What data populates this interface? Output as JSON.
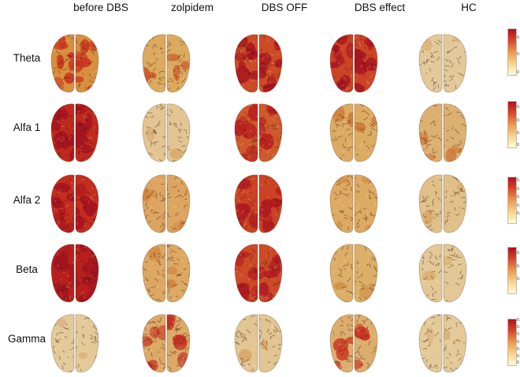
{
  "columns": [
    "before DBS",
    "zolpidem",
    "DBS OFF",
    "DBS effect",
    "HC"
  ],
  "rows": [
    {
      "label": "Theta",
      "colorbar_ticks": [
        "0.1",
        "0.05",
        "0"
      ],
      "tick_fractions": [
        0.78,
        0.42,
        0.02
      ],
      "brains": [
        {
          "base": "#d8903e",
          "hot": "#c8321e",
          "hot_fraction": 0.5
        },
        {
          "base": "#dcaa5e",
          "hot": "#cc5a2c",
          "hot_fraction": 0.22
        },
        {
          "base": "#cc4a26",
          "hot": "#a81420",
          "hot_fraction": 0.6
        },
        {
          "base": "#cc4425",
          "hot": "#a81420",
          "hot_fraction": 0.65
        },
        {
          "base": "#e3c99a",
          "hot": "#dcb27a",
          "hot_fraction": 0.05
        }
      ]
    },
    {
      "label": "Alfa 1",
      "colorbar_ticks": [
        "0.15",
        "0.1",
        "0.05",
        "0"
      ],
      "tick_fractions": [
        0.85,
        0.56,
        0.28,
        0.02
      ],
      "brains": [
        {
          "base": "#c02a1e",
          "hot": "#a51420",
          "hot_fraction": 0.7
        },
        {
          "base": "#e2c592",
          "hot": "#d9a868",
          "hot_fraction": 0.1
        },
        {
          "base": "#cf5a2c",
          "hot": "#b82020",
          "hot_fraction": 0.45
        },
        {
          "base": "#dcab62",
          "hot": "#cf7b3c",
          "hot_fraction": 0.15
        },
        {
          "base": "#dcb070",
          "hot": "#cf7b3c",
          "hot_fraction": 0.15
        }
      ]
    },
    {
      "label": "Alfa 2",
      "colorbar_ticks": [
        "0.25",
        "0.2",
        "0.15",
        "0.1",
        "0.05"
      ],
      "tick_fractions": [
        0.9,
        0.72,
        0.54,
        0.36,
        0.18
      ],
      "brains": [
        {
          "base": "#c42e1e",
          "hot": "#a81420",
          "hot_fraction": 0.65
        },
        {
          "base": "#dca560",
          "hot": "#d08440",
          "hot_fraction": 0.15
        },
        {
          "base": "#cc4224",
          "hot": "#b01a20",
          "hot_fraction": 0.5
        },
        {
          "base": "#dcaa62",
          "hot": "#d08a44",
          "hot_fraction": 0.12
        },
        {
          "base": "#e0c088",
          "hot": "#d9a868",
          "hot_fraction": 0.08
        }
      ]
    },
    {
      "label": "Beta",
      "colorbar_ticks": [
        "0.15",
        "0.1",
        "0.05"
      ],
      "tick_fractions": [
        0.85,
        0.56,
        0.28
      ],
      "brains": [
        {
          "base": "#b8201e",
          "hot": "#a01420",
          "hot_fraction": 0.75
        },
        {
          "base": "#dca862",
          "hot": "#d08440",
          "hot_fraction": 0.15
        },
        {
          "base": "#cc4a26",
          "hot": "#b01a20",
          "hot_fraction": 0.5
        },
        {
          "base": "#dcae68",
          "hot": "#d09048",
          "hot_fraction": 0.1
        },
        {
          "base": "#e2c896",
          "hot": "#d9ac6c",
          "hot_fraction": 0.05
        }
      ]
    },
    {
      "label": "Gamma",
      "colorbar_ticks": [
        "0.12",
        "0.1",
        "0.08",
        "0.06",
        "0.04",
        "0.02",
        "0"
      ],
      "tick_fractions": [
        0.95,
        0.8,
        0.64,
        0.48,
        0.32,
        0.16,
        0.02
      ],
      "brains": [
        {
          "base": "#e3ca98",
          "hot": "#dcb27a",
          "hot_fraction": 0.04
        },
        {
          "base": "#dcaa66",
          "hot": "#c22a20",
          "hot_fraction": 0.4
        },
        {
          "base": "#e2c592",
          "hot": "#d9a868",
          "hot_fraction": 0.06
        },
        {
          "base": "#dcae6e",
          "hot": "#c8321e",
          "hot_fraction": 0.28
        },
        {
          "base": "#e3ca98",
          "hot": "#dcb27a",
          "hot_fraction": 0.04
        }
      ]
    }
  ],
  "colorbar_colors": [
    "#fffbd6",
    "#f7d48a",
    "#ec9a4c",
    "#d9482a",
    "#b0101e"
  ]
}
